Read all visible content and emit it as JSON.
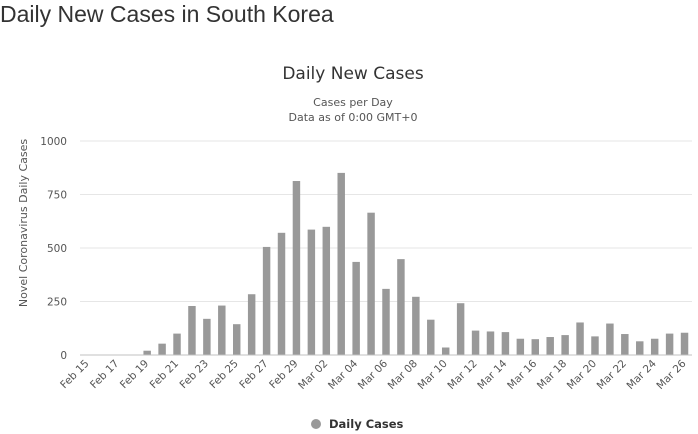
{
  "page": {
    "heading": "Daily New Cases in South Korea"
  },
  "chart_data": {
    "type": "bar",
    "title": "Daily New Cases",
    "subtitle_lines": [
      "Cases per Day",
      "Data as of 0:00 GMT+0"
    ],
    "ylabel": "Novel Coronavirus Daily Cases",
    "xlabel": "",
    "ylim": [
      0,
      1000
    ],
    "yticks": [
      0,
      250,
      500,
      750,
      1000
    ],
    "grid": true,
    "legend": {
      "position": "bottom-center",
      "marker": "circle"
    },
    "categories": [
      "Feb 15",
      "Feb 16",
      "Feb 17",
      "Feb 18",
      "Feb 19",
      "Feb 20",
      "Feb 21",
      "Feb 22",
      "Feb 23",
      "Feb 24",
      "Feb 25",
      "Feb 26",
      "Feb 27",
      "Feb 28",
      "Feb 29",
      "Mar 01",
      "Mar 02",
      "Mar 03",
      "Mar 04",
      "Mar 05",
      "Mar 06",
      "Mar 07",
      "Mar 08",
      "Mar 09",
      "Mar 10",
      "Mar 11",
      "Mar 12",
      "Mar 13",
      "Mar 14",
      "Mar 15",
      "Mar 16",
      "Mar 17",
      "Mar 18",
      "Mar 19",
      "Mar 20",
      "Mar 21",
      "Mar 22",
      "Mar 23",
      "Mar 24",
      "Mar 25",
      "Mar 26"
    ],
    "xtick_labels": [
      "Feb 15",
      "Feb 17",
      "Feb 19",
      "Feb 21",
      "Feb 23",
      "Feb 25",
      "Feb 27",
      "Feb 29",
      "Mar 02",
      "Mar 04",
      "Mar 06",
      "Mar 08",
      "Mar 10",
      "Mar 12",
      "Mar 14",
      "Mar 16",
      "Mar 18",
      "Mar 20",
      "Mar 22",
      "Mar 24",
      "Mar 26"
    ],
    "series": [
      {
        "name": "Daily Cases",
        "color": "#999999",
        "values": [
          0,
          1,
          0,
          1,
          20,
          53,
          100,
          229,
          169,
          231,
          144,
          284,
          505,
          571,
          813,
          586,
          599,
          851,
          435,
          665,
          309,
          448,
          272,
          165,
          35,
          242,
          114,
          110,
          107,
          76,
          74,
          84,
          93,
          152,
          87,
          147,
          98,
          64,
          76,
          100,
          104
        ]
      }
    ]
  }
}
